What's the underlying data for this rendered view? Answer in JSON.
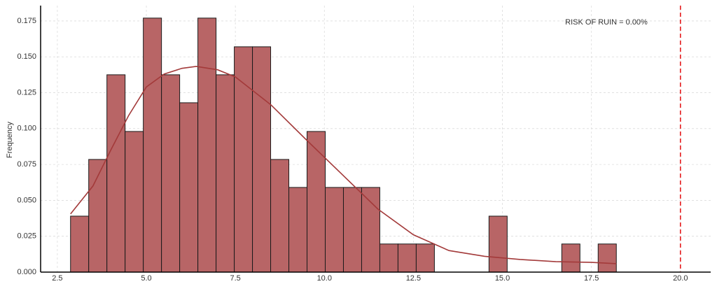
{
  "chart_data": {
    "type": "histogram",
    "y_label": "Frequency",
    "bins": [
      2.87,
      3.381,
      3.892,
      4.403,
      4.914,
      5.425,
      5.936,
      6.447,
      6.958,
      7.469,
      7.98,
      8.491,
      9.002,
      9.513,
      10.024,
      10.535,
      11.046,
      11.557,
      12.068,
      12.579,
      13.09,
      13.601,
      14.112,
      14.623,
      15.134,
      15.645,
      16.156,
      16.667,
      17.178,
      17.689,
      18.2
    ],
    "values": [
      0.039,
      0.0785,
      0.1375,
      0.098,
      0.177,
      0.1375,
      0.118,
      0.177,
      0.1375,
      0.157,
      0.157,
      0.0785,
      0.059,
      0.098,
      0.059,
      0.059,
      0.059,
      0.0196,
      0.0196,
      0.0196,
      0,
      0,
      0,
      0.039,
      0,
      0,
      0,
      0.0196,
      0,
      0.0196
    ],
    "color": "#b86566",
    "edge_color": "#1a1a1a",
    "kde": {
      "color": "#a33a3a",
      "x": [
        2.87,
        3.5,
        4.0,
        4.5,
        5.0,
        5.5,
        6.0,
        6.4,
        7.0,
        7.5,
        8.5,
        9.5,
        10.5,
        11.5,
        12.5,
        13.5,
        14.5,
        15.5,
        16.5,
        17.5,
        18.2
      ],
      "values": [
        0.0405,
        0.06,
        0.085,
        0.109,
        0.129,
        0.138,
        0.142,
        0.1433,
        0.141,
        0.136,
        0.1165,
        0.092,
        0.068,
        0.044,
        0.026,
        0.015,
        0.011,
        0.0088,
        0.0073,
        0.0068,
        0.0059
      ]
    },
    "threshold": {
      "value": 20.0,
      "color": "#e41a1c"
    },
    "annotation": "RISK OF RUIN = 0.00%",
    "xlim": [
      2.03,
      20.85
    ],
    "ylim": [
      0,
      0.1857
    ],
    "xticks": [
      2.5,
      {
        "value": 5.0,
        "label": "5.0"
      },
      7.5,
      {
        "value": 10.0,
        "label": "10.0"
      },
      12.5,
      {
        "value": 15.0,
        "label": "15.0"
      },
      17.5,
      {
        "value": 20.0,
        "label": "20.0"
      }
    ],
    "yticks": [
      {
        "value": 0,
        "label": "0.000"
      },
      {
        "value": 0.025,
        "label": "0.025"
      },
      {
        "value": 0.05,
        "label": "0.050"
      },
      {
        "value": 0.075,
        "label": "0.075"
      },
      {
        "value": 0.1,
        "label": "0.100"
      },
      {
        "value": 0.125,
        "label": "0.125"
      },
      {
        "value": 0.15,
        "label": "0.150"
      },
      {
        "value": 0.175,
        "label": "0.175"
      }
    ],
    "grid": true
  }
}
